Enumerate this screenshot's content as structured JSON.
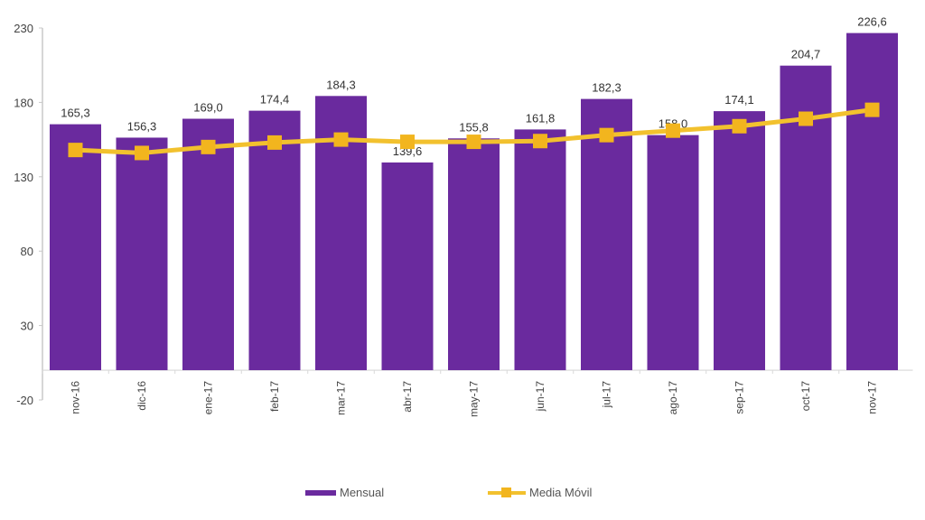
{
  "chart_data": {
    "type": "bar",
    "title": "",
    "xlabel": "",
    "ylabel": "",
    "ylim": [
      -20,
      230
    ],
    "yticks": [
      230,
      180,
      130,
      80,
      30,
      -20
    ],
    "grid": false,
    "legend_position": "bottom",
    "categories": [
      "nov-16",
      "dic-16",
      "ene-17",
      "feb-17",
      "mar-17",
      "abr-17",
      "may-17",
      "jun-17",
      "jul-17",
      "ago-17",
      "sep-17",
      "oct-17",
      "nov-17"
    ],
    "series": [
      {
        "name": "Mensual",
        "type": "bar",
        "color": "#6a2a9e",
        "values": [
          165.3,
          156.3,
          169.0,
          174.4,
          184.3,
          139.6,
          155.8,
          161.8,
          182.3,
          158.0,
          174.1,
          204.7,
          226.6
        ],
        "labels": [
          "165,3",
          "156,3",
          "169,0",
          "174,4",
          "184,3",
          "139,6",
          "155,8",
          "161,8",
          "182,3",
          "158,0",
          "174,1",
          "204,7",
          "226,6"
        ]
      },
      {
        "name": "Media Móvil",
        "type": "line",
        "color": "#f2b51e",
        "values": [
          148,
          146,
          150,
          153,
          155,
          153.5,
          153.5,
          154,
          158,
          161,
          164,
          169,
          175
        ]
      }
    ]
  },
  "legend": {
    "items": [
      {
        "label": "Mensual"
      },
      {
        "label": "Media Móvil"
      }
    ]
  }
}
